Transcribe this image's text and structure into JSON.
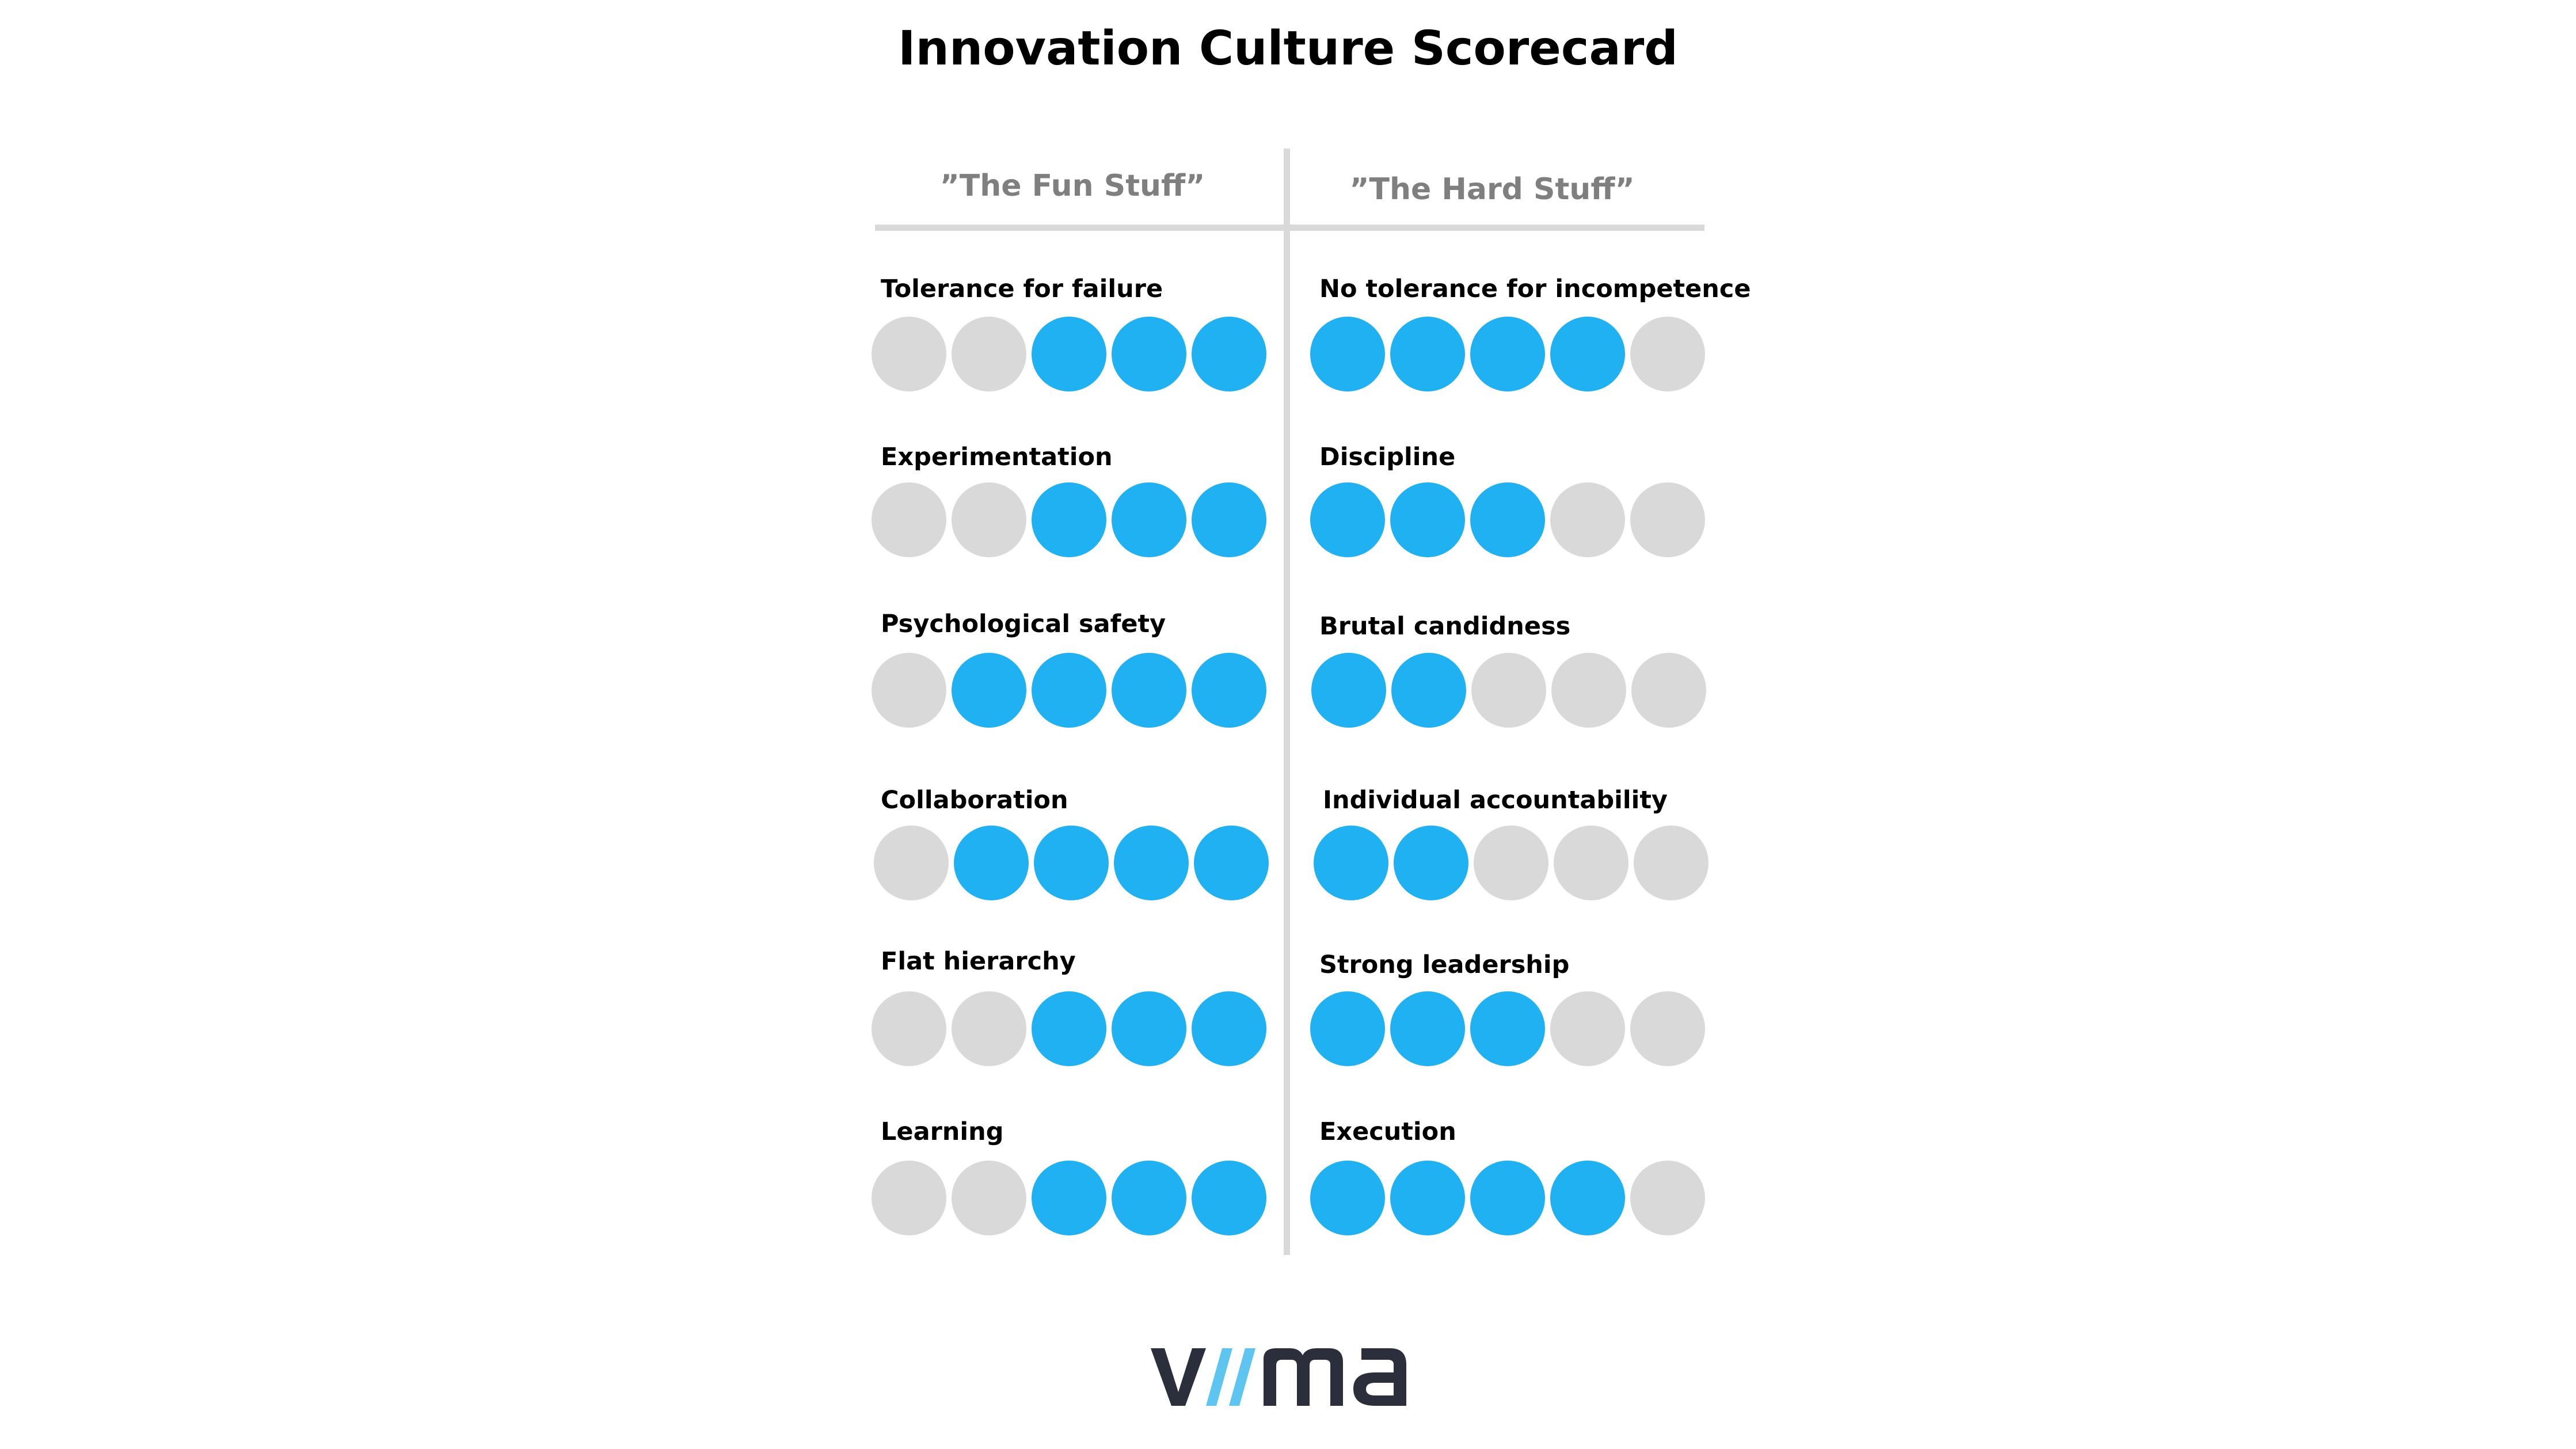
{
  "title": "Innovation Culture Scorecard",
  "colors": {
    "filled": "#1fb1f1",
    "empty": "#d9d9d9",
    "header_text": "#7f7f7f",
    "divider": "#d9d9d9",
    "logo_dark": "#2b2f3b",
    "logo_accent": "#5dc5f0"
  },
  "columns": [
    {
      "header": "”The Fun Stuff”",
      "items": [
        {
          "label": "Tolerance for failure",
          "score": 3,
          "max": 5
        },
        {
          "label": "Experimentation",
          "score": 3,
          "max": 5
        },
        {
          "label": "Psychological safety",
          "score": 4,
          "max": 5
        },
        {
          "label": "Collaboration",
          "score": 4,
          "max": 5
        },
        {
          "label": "Flat hierarchy",
          "score": 3,
          "max": 5
        },
        {
          "label": "Learning",
          "score": 3,
          "max": 5
        }
      ]
    },
    {
      "header": "”The Hard Stuff”",
      "items": [
        {
          "label": "No tolerance for incompetence",
          "score": 4,
          "max": 5
        },
        {
          "label": "Discipline",
          "score": 3,
          "max": 5
        },
        {
          "label": "Brutal candidness",
          "score": 2,
          "max": 5
        },
        {
          "label": "Individual accountability",
          "score": 2,
          "max": 5
        },
        {
          "label": "Strong leadership",
          "score": 3,
          "max": 5
        },
        {
          "label": "Execution",
          "score": 4,
          "max": 5
        }
      ]
    }
  ],
  "logo": {
    "text": "visma",
    "icon": "visma-logo"
  }
}
